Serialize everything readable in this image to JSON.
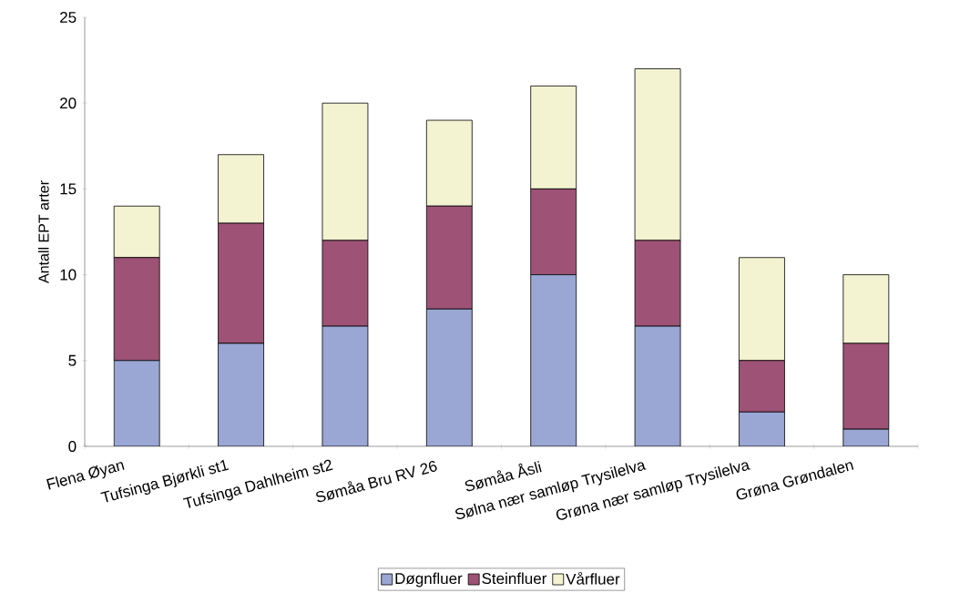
{
  "chart_data": {
    "type": "bar",
    "stacked": true,
    "ylabel": "Antall EPT arter",
    "categories": [
      "Flena Øyan",
      "Tufsinga Bjørkli st1",
      "Tufsinga Dahlheim st2",
      "Sømåa Bru RV 26",
      "Sømåa Åsli",
      "Sølna nær samløp Trysilelva",
      "Grøna nær samløp Trysilelva",
      "Grøna Grøndalen"
    ],
    "series": [
      {
        "name": "Døgnfluer",
        "color": "#9aa6d4",
        "values": [
          5,
          6,
          7,
          8,
          10,
          7,
          2,
          1
        ]
      },
      {
        "name": "Steinfluer",
        "color": "#9e5276",
        "values": [
          6,
          7,
          5,
          6,
          5,
          5,
          3,
          5
        ]
      },
      {
        "name": "Vårfluer",
        "color": "#f3f2d1",
        "values": [
          3,
          4,
          8,
          5,
          6,
          10,
          6,
          4
        ]
      }
    ],
    "ylim": [
      0,
      25
    ],
    "yticks": [
      0,
      5,
      10,
      15,
      20,
      25
    ],
    "grid": false,
    "legend": "bottom"
  }
}
